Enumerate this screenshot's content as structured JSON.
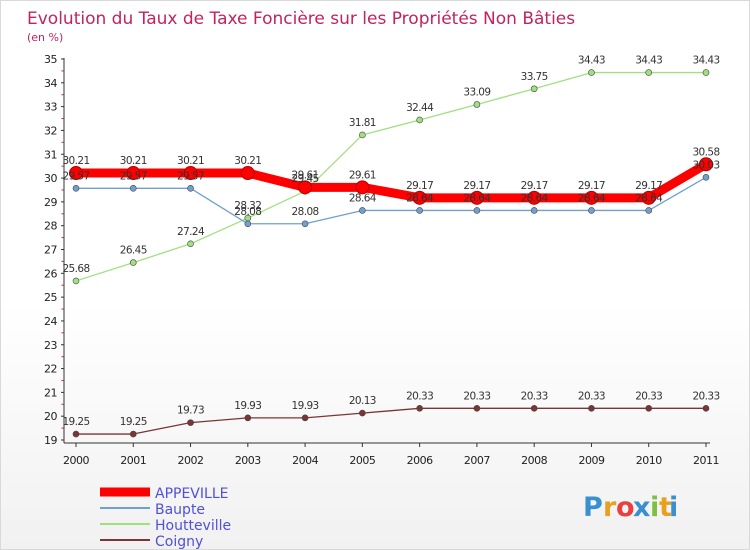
{
  "chart_data": {
    "type": "line",
    "title": "Evolution du Taux de Taxe Foncière sur les Propriétés Non Bâties",
    "subtitle": "(en %)",
    "x": [
      "2000",
      "2001",
      "2002",
      "2003",
      "2004",
      "2005",
      "2006",
      "2007",
      "2008",
      "2009",
      "2010",
      "2011"
    ],
    "ylim": [
      19,
      35
    ],
    "yticks": [
      19,
      20,
      21,
      22,
      23,
      24,
      25,
      26,
      27,
      28,
      29,
      30,
      31,
      32,
      33,
      34,
      35
    ],
    "grid": false,
    "legend_position": "bottom-left",
    "series": [
      {
        "name": "APPEVILLE",
        "color": "#ff0000",
        "values": [
          30.21,
          30.21,
          30.21,
          30.21,
          29.61,
          29.61,
          29.17,
          29.17,
          29.17,
          29.17,
          29.17,
          30.58
        ],
        "labels": [
          "30.21",
          "30.21",
          "30.21",
          "30.21",
          "29.61",
          "29.61",
          "29.17",
          "29.17",
          "29.17",
          "29.17",
          "29.17",
          "30.58"
        ]
      },
      {
        "name": "Baupte",
        "color": "#6fa0d0",
        "values": [
          29.57,
          29.57,
          29.57,
          28.08,
          28.08,
          28.64,
          28.64,
          28.64,
          28.64,
          28.64,
          28.64,
          30.03
        ],
        "labels": [
          "29.57",
          "29.57",
          "29.57",
          "28.08",
          "28.08",
          "28.64",
          "28.64",
          "28.64",
          "28.64",
          "28.64",
          "28.64",
          "30.03"
        ]
      },
      {
        "name": "Houtteville",
        "color": "#a0e080",
        "values": [
          25.68,
          26.45,
          27.24,
          28.32,
          29.45,
          31.81,
          32.44,
          33.09,
          33.75,
          34.43,
          34.43,
          34.43
        ],
        "labels": [
          "25.68",
          "26.45",
          "27.24",
          "28.32",
          "29.45",
          "31.81",
          "32.44",
          "33.09",
          "33.75",
          "34.43",
          "34.43",
          "34.43"
        ]
      },
      {
        "name": "Coigny",
        "color": "#7a3535",
        "values": [
          19.25,
          19.25,
          19.73,
          19.93,
          19.93,
          20.13,
          20.33,
          20.33,
          20.33,
          20.33,
          20.33,
          20.33
        ],
        "labels": [
          "19.25",
          "19.25",
          "19.73",
          "19.93",
          "19.93",
          "20.13",
          "20.33",
          "20.33",
          "20.33",
          "20.33",
          "20.33",
          "20.33"
        ]
      }
    ]
  },
  "logo": {
    "text": "Proxiti",
    "letters": [
      "P",
      "r",
      "o",
      "x",
      "i",
      "t",
      "i"
    ],
    "colors": [
      "#3a8fd0",
      "#e8a020",
      "#e84040",
      "#3a8fd0",
      "#7bc043",
      "#e8a020",
      "#3a8fd0"
    ]
  }
}
